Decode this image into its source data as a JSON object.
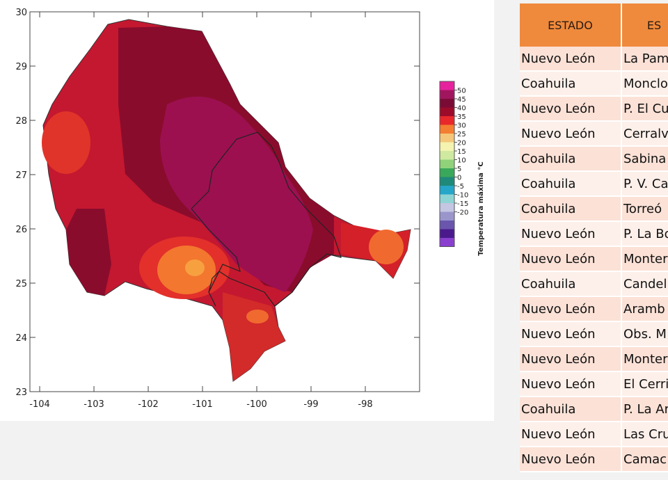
{
  "map": {
    "lon_ticks": [
      -104,
      -103,
      -102,
      -101,
      -100,
      -99,
      -98
    ],
    "lat_ticks": [
      23,
      24,
      25,
      26,
      27,
      28,
      29,
      30
    ],
    "xlim": [
      -104.18,
      -97
    ],
    "ylim": [
      23,
      30
    ],
    "colorbar": {
      "label": "Temperatura máxima °C",
      "ticks": [
        50,
        45,
        40,
        35,
        30,
        25,
        20,
        15,
        10,
        5,
        0,
        -5,
        -10,
        -15,
        -20
      ],
      "colors": [
        "#e6239c",
        "#a1155f",
        "#7a0b35",
        "#9c0b2a",
        "#e8282a",
        "#f47f32",
        "#f5c77a",
        "#f4f3b0",
        "#cfe9a0",
        "#8fd27a",
        "#3aa85a",
        "#1f8a7a",
        "#26a6c9",
        "#8fd4d4",
        "#c4c6e2",
        "#9a96cc",
        "#6a56ad",
        "#4a1a8c",
        "#8a3fcf"
      ]
    }
  },
  "table": {
    "header": [
      "ESTADO",
      "ES"
    ],
    "rows": [
      [
        "Nuevo León",
        "La Pam"
      ],
      [
        "Coahuila",
        "Monclo"
      ],
      [
        "Nuevo León",
        "P. El Cu"
      ],
      [
        "Nuevo León",
        "Cerralv"
      ],
      [
        "Coahuila",
        "Sabina"
      ],
      [
        "Coahuila",
        "P. V. Ca"
      ],
      [
        "Coahuila",
        "Torreó"
      ],
      [
        "Nuevo León",
        "P. La Bo"
      ],
      [
        "Nuevo León",
        "Monter"
      ],
      [
        "Coahuila",
        "Candel"
      ],
      [
        "Nuevo León",
        "Aramb"
      ],
      [
        "Nuevo León",
        "Obs. M"
      ],
      [
        "Nuevo León",
        "Monter"
      ],
      [
        "Nuevo León",
        "El Cerri"
      ],
      [
        "Coahuila",
        "P. La Ar"
      ],
      [
        "Nuevo León",
        "Las Cru"
      ],
      [
        "Nuevo León",
        "Camac"
      ]
    ]
  }
}
